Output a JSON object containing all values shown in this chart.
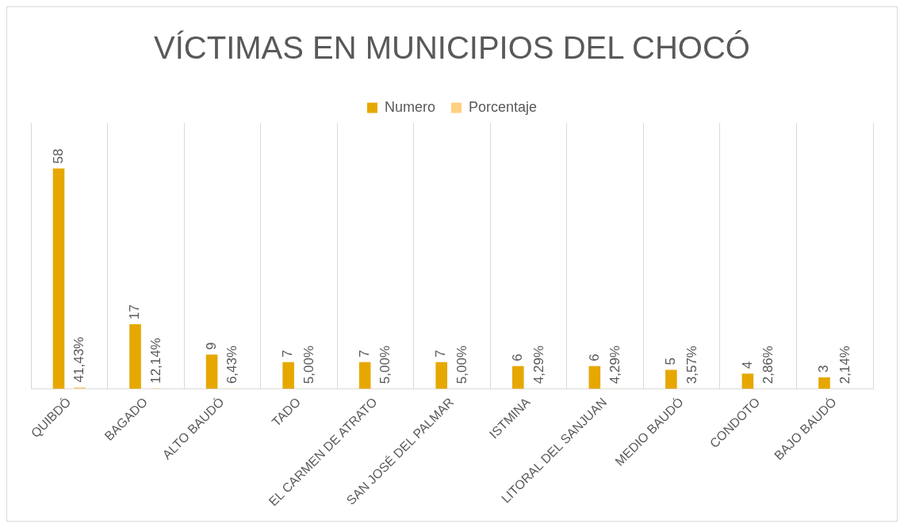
{
  "chart_data": {
    "type": "bar",
    "title": "VÍCTIMAS EN MUNICIPIOS DEL CHOCÓ",
    "categories": [
      "QUIBDÓ",
      "BAGADO",
      "ALTO BAUDÓ",
      "TADO",
      "EL CARMEN DE ATRATO",
      "SAN JOSÉ DEL PALMAR",
      "ISTMINA",
      "LITORAL DEL SANJUAN",
      "MEDIO BAUDÓ",
      "CONDOTO",
      "BAJO BAUDÓ"
    ],
    "series": [
      {
        "name": "Numero",
        "color": "#e6a800",
        "values": [
          58,
          17,
          9,
          7,
          7,
          7,
          6,
          6,
          5,
          4,
          3
        ],
        "value_labels": [
          "58",
          "17",
          "9",
          "7",
          "7",
          "7",
          "6",
          "6",
          "5",
          "4",
          "3"
        ]
      },
      {
        "name": "Porcentaje",
        "color": "#ffd080",
        "values": [
          0.4143,
          0.1214,
          0.0643,
          0.05,
          0.05,
          0.05,
          0.0429,
          0.0429,
          0.0357,
          0.0286,
          0.0214
        ],
        "value_labels": [
          "41,43%",
          "12,14%",
          "6,43%",
          "5,00%",
          "5,00%",
          "5,00%",
          "4,29%",
          "4,29%",
          "3,57%",
          "2,86%",
          "2,14%"
        ]
      }
    ],
    "legend": "top",
    "grid": "x"
  }
}
